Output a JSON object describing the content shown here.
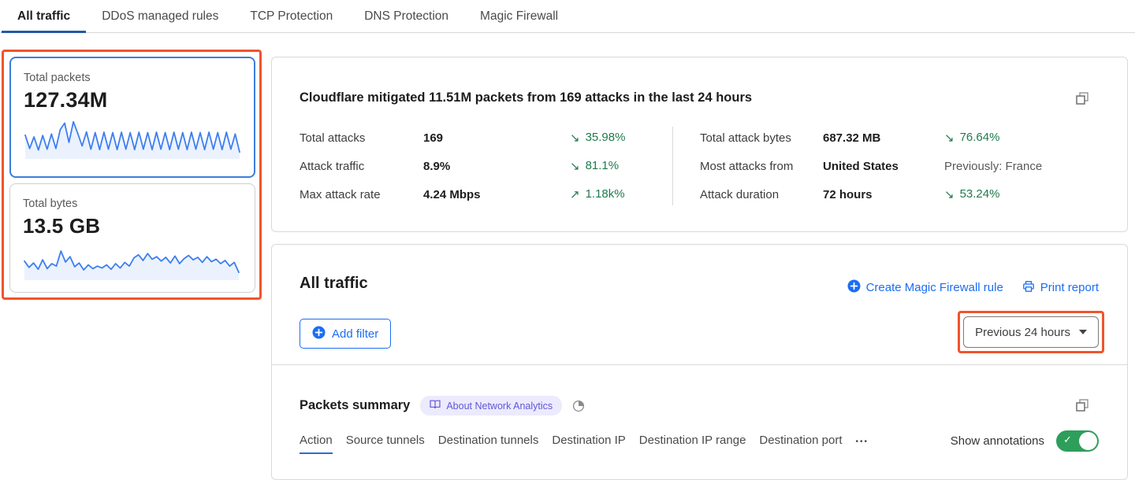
{
  "colors": {
    "sparkline": "#3e7ff0",
    "sparkline_fill": "rgba(62,127,240,0.10)",
    "accent_blue": "#1b6ef3",
    "tab_underline": "#2458a8",
    "change_green": "#1f7a4d",
    "annotation_orange": "#f0542c",
    "selected_card_border": "#3b7ddd",
    "toggle_green": "#2e9e5b",
    "badge_bg": "#eceafd",
    "badge_text": "#6157d8"
  },
  "tabs": {
    "items": [
      {
        "label": "All traffic",
        "active": true
      },
      {
        "label": "DDoS managed rules",
        "active": false
      },
      {
        "label": "TCP Protection",
        "active": false
      },
      {
        "label": "DNS Protection",
        "active": false
      },
      {
        "label": "Magic Firewall",
        "active": false
      }
    ]
  },
  "summary_cards": [
    {
      "label": "Total packets",
      "value": "127.34M"
    },
    {
      "label": "Total bytes",
      "value": "13.5 GB"
    }
  ],
  "chart_data": [
    {
      "type": "line",
      "title": "Total packets sparkline (last 24 hours)",
      "legend_position": "none",
      "grid": false,
      "axis_labels": false,
      "ylim_normalized": [
        0,
        100
      ],
      "values": [
        55,
        18,
        50,
        14,
        54,
        16,
        58,
        18,
        70,
        88,
        35,
        92,
        60,
        25,
        64,
        16,
        62,
        15,
        63,
        16,
        62,
        15,
        63,
        16,
        62,
        15,
        63,
        16,
        62,
        15,
        63,
        16,
        62,
        15,
        63,
        16,
        62,
        15,
        63,
        16,
        62,
        15,
        63,
        16,
        62,
        15,
        63,
        16,
        58,
        8
      ]
    },
    {
      "type": "line",
      "title": "Total bytes sparkline (last 24 hours)",
      "legend_position": "none",
      "grid": false,
      "axis_labels": false,
      "ylim_normalized": [
        0,
        100
      ],
      "values": [
        48,
        28,
        42,
        22,
        52,
        24,
        40,
        32,
        80,
        45,
        62,
        30,
        42,
        20,
        36,
        24,
        32,
        26,
        36,
        22,
        40,
        26,
        44,
        32,
        58,
        68,
        50,
        72,
        54,
        62,
        48,
        60,
        42,
        64,
        40,
        56,
        66,
        52,
        60,
        44,
        62,
        46,
        54,
        40,
        50,
        32,
        44,
        12
      ]
    }
  ],
  "mitigation_panel": {
    "title": "Cloudflare mitigated 11.51M packets from 169 attacks in the last 24 hours",
    "stats_left": [
      {
        "label": "Total attacks",
        "value": "169",
        "arrow": "↘",
        "change": "35.98%"
      },
      {
        "label": "Attack traffic",
        "value": "8.9%",
        "arrow": "↘",
        "change": "81.1%"
      },
      {
        "label": "Max attack rate",
        "value": "4.24 Mbps",
        "arrow": "↗",
        "change": "1.18k%"
      }
    ],
    "stats_right": [
      {
        "label": "Total attack bytes",
        "value": "687.32 MB",
        "arrow": "↘",
        "change": "76.64%"
      },
      {
        "label": "Most attacks from",
        "value": "United States",
        "arrow": "",
        "change": "Previously: France"
      },
      {
        "label": "Attack duration",
        "value": "72 hours",
        "arrow": "↘",
        "change": "53.24%"
      }
    ]
  },
  "traffic_panel": {
    "title": "All traffic",
    "create_rule_label": "Create Magic Firewall rule",
    "print_report_label": "Print report",
    "add_filter_label": "Add filter",
    "time_range_label": "Previous 24 hours"
  },
  "packets_summary": {
    "title": "Packets summary",
    "badge_label": "About Network Analytics",
    "subtabs": [
      {
        "label": "Action",
        "active": true
      },
      {
        "label": "Source tunnels",
        "active": false
      },
      {
        "label": "Destination tunnels",
        "active": false
      },
      {
        "label": "Destination IP",
        "active": false
      },
      {
        "label": "Destination IP range",
        "active": false
      },
      {
        "label": "Destination port",
        "active": false
      }
    ],
    "more_label": "•••",
    "show_annotations_label": "Show annotations",
    "show_annotations_on": true
  }
}
